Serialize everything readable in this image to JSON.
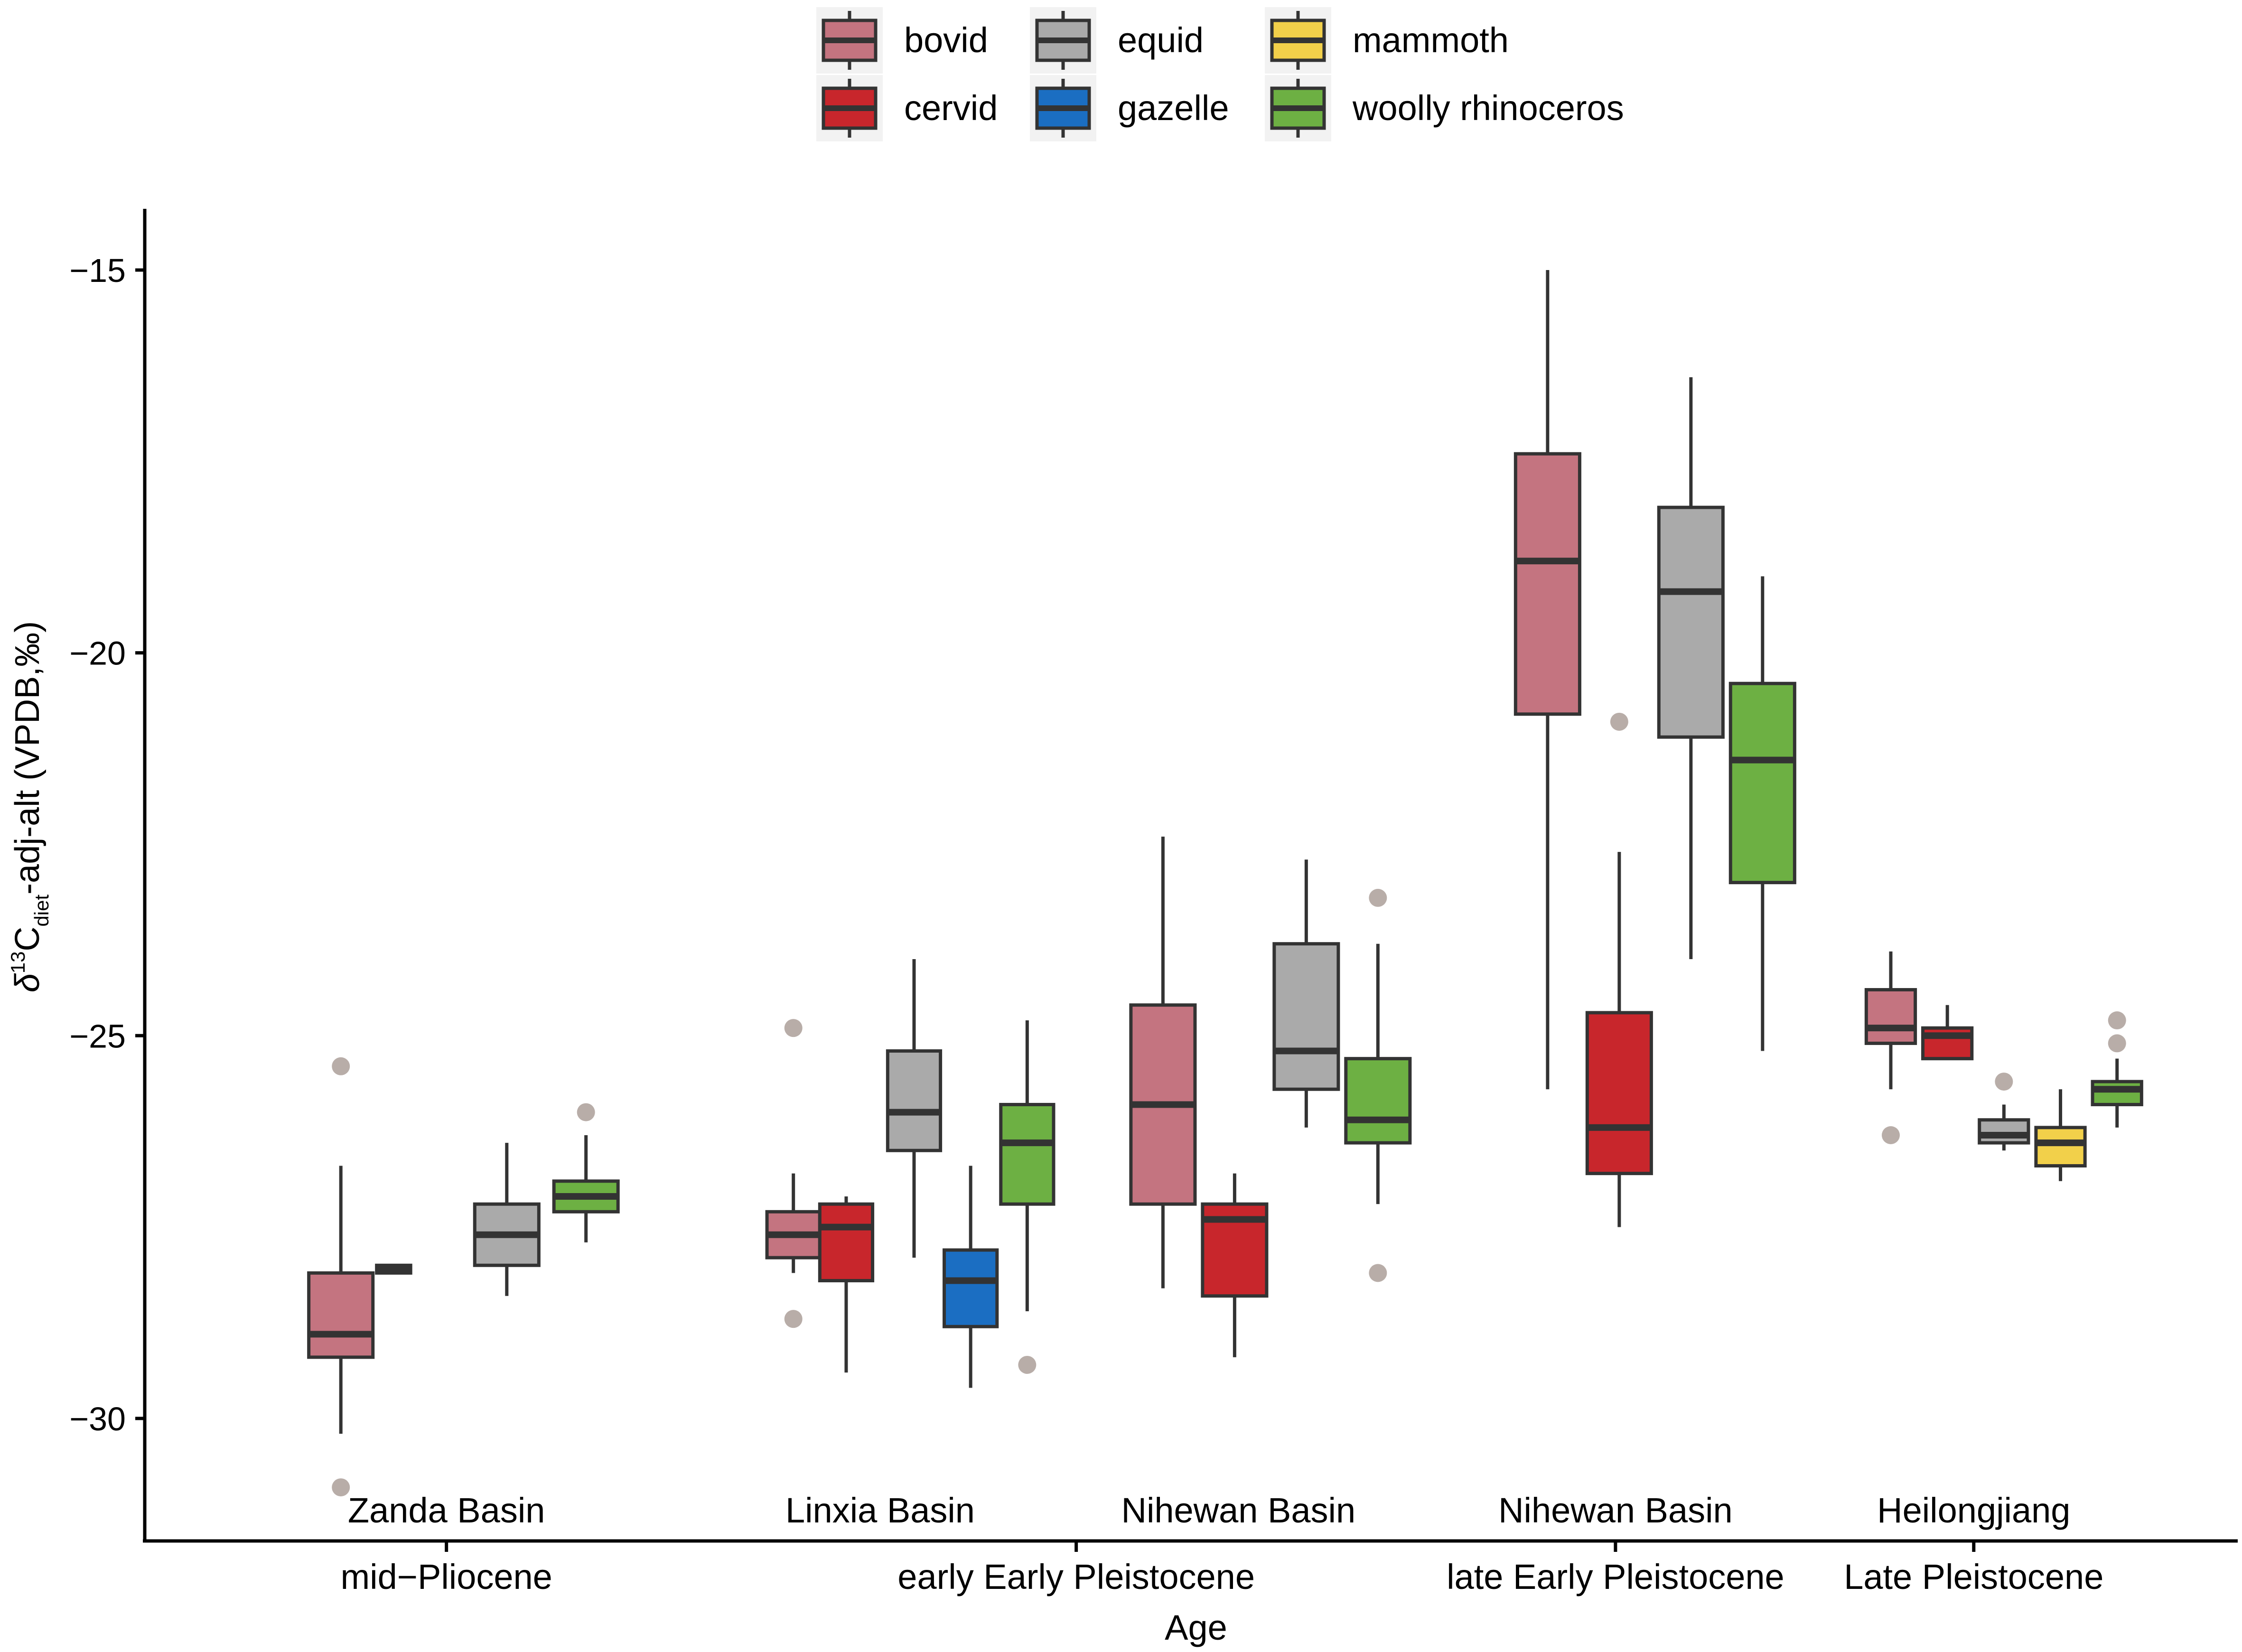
{
  "chart_data": {
    "type": "boxplot",
    "xlabel": "Age",
    "ylabel": {
      "delta": "δ",
      "sup": "13",
      "c": "C",
      "sub": "diet",
      "rest": "-adj-alt (VPDB,‰)"
    },
    "ylim": [
      -31.6,
      -14.2
    ],
    "yticks": [
      -15,
      -20,
      -25,
      -30
    ],
    "ytick_labels": [
      "−15",
      "−20",
      "−25",
      "−30"
    ],
    "legend": {
      "position": "top",
      "entries": [
        {
          "key": "bovid",
          "label": "bovid",
          "color": "#C47480"
        },
        {
          "key": "cervid",
          "label": "cervid",
          "color": "#C8262C"
        },
        {
          "key": "equid",
          "label": "equid",
          "color": "#AAAAAA"
        },
        {
          "key": "gazelle",
          "label": "gazelle",
          "color": "#1B6EC2"
        },
        {
          "key": "mammoth",
          "label": "mammoth",
          "color": "#F2D04A"
        },
        {
          "key": "woolly_rhinoceros",
          "label": "woolly rhinoceros",
          "color": "#6DB043"
        }
      ]
    },
    "age_groups": [
      {
        "label": "mid−Pliocene",
        "center": 0.8
      },
      {
        "label": "early Early Pleistocene",
        "center": 2.47
      },
      {
        "label": "late Early Pleistocene",
        "center": 3.9
      },
      {
        "label": "Late Pleistocene",
        "center": 4.85
      }
    ],
    "basins": [
      {
        "label": "Zanda Basin",
        "center": 0.8
      },
      {
        "label": "Linxia Basin",
        "center": 1.95
      },
      {
        "label": "Nihewan Basin",
        "center": 2.9
      },
      {
        "label": "Nihewan Basin",
        "center": 3.9
      },
      {
        "label": "Heilongjiang",
        "center": 4.85
      }
    ],
    "x_domain": [
      0,
      5.55
    ],
    "boxes": [
      {
        "basin": "Zanda Basin",
        "species": "bovid",
        "pos": 0.52,
        "w": 0.17,
        "whisker_low": -30.2,
        "q1": -29.2,
        "median": -28.9,
        "q3": -28.1,
        "whisker_high": -26.7,
        "outliers": [
          -25.4,
          -30.9
        ]
      },
      {
        "basin": "Zanda Basin",
        "species": "cervid",
        "pos": 0.66,
        "w": 0.09,
        "whisker_low": -28.1,
        "q1": -28.1,
        "median": -28.05,
        "q3": -28.0,
        "whisker_high": -28.0,
        "outliers": []
      },
      {
        "basin": "Zanda Basin",
        "species": "equid",
        "pos": 0.96,
        "w": 0.17,
        "whisker_low": -28.4,
        "q1": -28.0,
        "median": -27.6,
        "q3": -27.2,
        "whisker_high": -26.4,
        "outliers": []
      },
      {
        "basin": "Zanda Basin",
        "species": "woolly_rhinoceros",
        "pos": 1.17,
        "w": 0.17,
        "whisker_low": -27.7,
        "q1": -27.3,
        "median": -27.1,
        "q3": -26.9,
        "whisker_high": -26.3,
        "outliers": [
          -26.0
        ]
      },
      {
        "basin": "Linxia Basin",
        "species": "bovid",
        "pos": 1.72,
        "w": 0.14,
        "whisker_low": -28.1,
        "q1": -27.9,
        "median": -27.6,
        "q3": -27.3,
        "whisker_high": -26.8,
        "outliers": [
          -24.9,
          -28.7
        ]
      },
      {
        "basin": "Linxia Basin",
        "species": "cervid",
        "pos": 1.86,
        "w": 0.14,
        "whisker_low": -29.4,
        "q1": -28.2,
        "median": -27.5,
        "q3": -27.2,
        "whisker_high": -27.1,
        "outliers": []
      },
      {
        "basin": "Linxia Basin",
        "species": "equid",
        "pos": 2.04,
        "w": 0.14,
        "whisker_low": -27.9,
        "q1": -26.5,
        "median": -26.0,
        "q3": -25.2,
        "whisker_high": -24.0,
        "outliers": []
      },
      {
        "basin": "Linxia Basin",
        "species": "gazelle",
        "pos": 2.19,
        "w": 0.14,
        "whisker_low": -29.6,
        "q1": -28.8,
        "median": -28.2,
        "q3": -27.8,
        "whisker_high": -26.7,
        "outliers": []
      },
      {
        "basin": "Linxia Basin",
        "species": "woolly_rhinoceros",
        "pos": 2.34,
        "w": 0.14,
        "whisker_low": -28.6,
        "q1": -27.2,
        "median": -26.4,
        "q3": -25.9,
        "whisker_high": -24.8,
        "outliers": [
          -29.3
        ]
      },
      {
        "basin": "Nihewan Basin",
        "species": "bovid",
        "pos": 2.7,
        "w": 0.17,
        "whisker_low": -28.3,
        "q1": -27.2,
        "median": -25.9,
        "q3": -24.6,
        "whisker_high": -22.4,
        "outliers": []
      },
      {
        "basin": "Nihewan Basin",
        "species": "cervid",
        "pos": 2.89,
        "w": 0.17,
        "whisker_low": -29.2,
        "q1": -28.4,
        "median": -27.4,
        "q3": -27.2,
        "whisker_high": -26.8,
        "outliers": []
      },
      {
        "basin": "Nihewan Basin",
        "species": "equid",
        "pos": 3.08,
        "w": 0.17,
        "whisker_low": -26.2,
        "q1": -25.7,
        "median": -25.2,
        "q3": -23.8,
        "whisker_high": -22.7,
        "outliers": []
      },
      {
        "basin": "Nihewan Basin",
        "species": "woolly_rhinoceros",
        "pos": 3.27,
        "w": 0.17,
        "whisker_low": -27.2,
        "q1": -26.4,
        "median": -26.1,
        "q3": -25.3,
        "whisker_high": -23.8,
        "outliers": [
          -23.2,
          -28.1
        ]
      },
      {
        "basin": "Nihewan Basin",
        "species": "bovid",
        "pos": 3.72,
        "w": 0.17,
        "whisker_low": -25.7,
        "q1": -20.8,
        "median": -18.8,
        "q3": -17.4,
        "whisker_high": -15.0,
        "outliers": []
      },
      {
        "basin": "Nihewan Basin",
        "species": "cervid",
        "pos": 3.91,
        "w": 0.17,
        "whisker_low": -27.5,
        "q1": -26.8,
        "median": -26.2,
        "q3": -24.7,
        "whisker_high": -22.6,
        "outliers": [
          -20.9
        ]
      },
      {
        "basin": "Nihewan Basin",
        "species": "equid",
        "pos": 4.1,
        "w": 0.17,
        "whisker_low": -24.0,
        "q1": -21.1,
        "median": -19.2,
        "q3": -18.1,
        "whisker_high": -16.4,
        "outliers": []
      },
      {
        "basin": "Nihewan Basin",
        "species": "woolly_rhinoceros",
        "pos": 4.29,
        "w": 0.17,
        "whisker_low": -25.2,
        "q1": -23.0,
        "median": -21.4,
        "q3": -20.4,
        "whisker_high": -19.0,
        "outliers": []
      },
      {
        "basin": "Heilongjiang",
        "species": "bovid",
        "pos": 4.63,
        "w": 0.13,
        "whisker_low": -25.7,
        "q1": -25.1,
        "median": -24.9,
        "q3": -24.4,
        "whisker_high": -23.9,
        "outliers": [
          -26.3
        ]
      },
      {
        "basin": "Heilongjiang",
        "species": "cervid",
        "pos": 4.78,
        "w": 0.13,
        "whisker_low": -25.3,
        "q1": -25.3,
        "median": -25.0,
        "q3": -24.9,
        "whisker_high": -24.6,
        "outliers": []
      },
      {
        "basin": "Heilongjiang",
        "species": "equid",
        "pos": 4.93,
        "w": 0.13,
        "whisker_low": -26.5,
        "q1": -26.4,
        "median": -26.3,
        "q3": -26.1,
        "whisker_high": -25.9,
        "outliers": [
          -25.6
        ]
      },
      {
        "basin": "Heilongjiang",
        "species": "mammoth",
        "pos": 5.08,
        "w": 0.13,
        "whisker_low": -26.9,
        "q1": -26.7,
        "median": -26.4,
        "q3": -26.2,
        "whisker_high": -25.7,
        "outliers": []
      },
      {
        "basin": "Heilongjiang",
        "species": "woolly_rhinoceros",
        "pos": 5.23,
        "w": 0.13,
        "whisker_low": -26.2,
        "q1": -25.9,
        "median": -25.7,
        "q3": -25.6,
        "whisker_high": -25.3,
        "outliers": [
          -24.8,
          -25.1
        ]
      }
    ]
  }
}
